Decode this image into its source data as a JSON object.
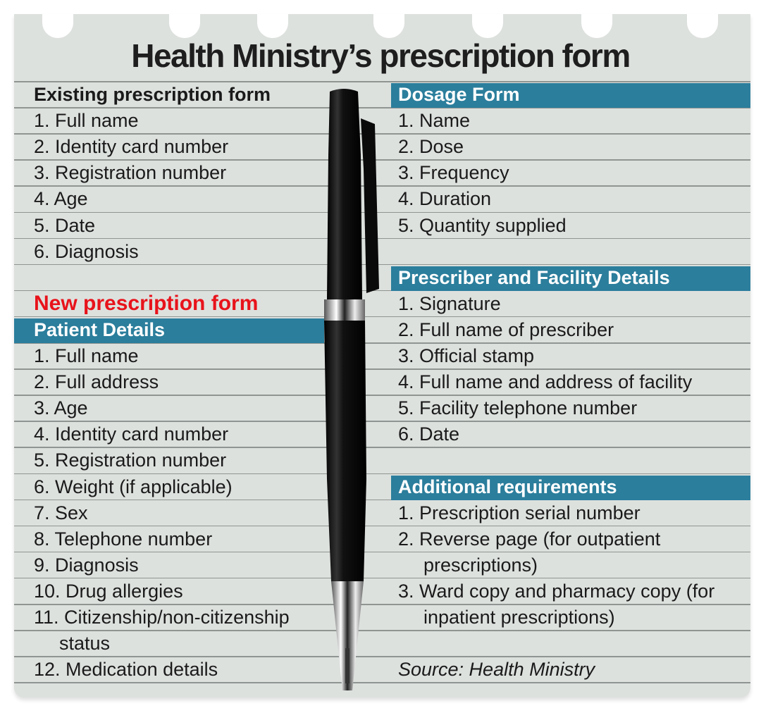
{
  "title": "Health Ministry’s prescription form",
  "left": {
    "existing_title": "Existing prescription form",
    "existing_items": [
      "1. Full name",
      "2. Identity card number",
      "3. Registration number",
      "4. Age",
      "5. Date",
      "6. Diagnosis"
    ],
    "new_title": "New prescription form",
    "patient_header": "Patient Details",
    "patient_items": [
      "1. Full name",
      "2. Full address",
      "3. Age",
      "4. Identity card number",
      "5. Registration number",
      "6. Weight (if applicable)",
      "7. Sex",
      "8. Telephone number",
      "9. Diagnosis",
      "10. Drug allergies",
      "11. Citizenship/non-citizenship",
      "status",
      "12. Medication details"
    ]
  },
  "right": {
    "dosage_header": "Dosage Form",
    "dosage_items": [
      "1. Name",
      "2. Dose",
      "3. Frequency",
      "4. Duration",
      "5. Quantity supplied"
    ],
    "prescriber_header": "Prescriber and Facility Details",
    "prescriber_items": [
      "1. Signature",
      "2. Full name of prescriber",
      "3. Official stamp",
      "4. Full name and address of facility",
      "5. Facility telephone number",
      "6. Date"
    ],
    "additional_header": "Additional requirements",
    "additional_items": [
      "1. Prescription serial number",
      "2. Reverse page (for outpatient",
      "prescriptions)",
      "3. Ward copy and pharmacy copy (for",
      "inpatient prescriptions)"
    ],
    "source": "Source: Health Ministry"
  },
  "colors": {
    "header_bar": "#2b7e9c",
    "new_title": "#e8131b",
    "paper": "#dde1de"
  }
}
